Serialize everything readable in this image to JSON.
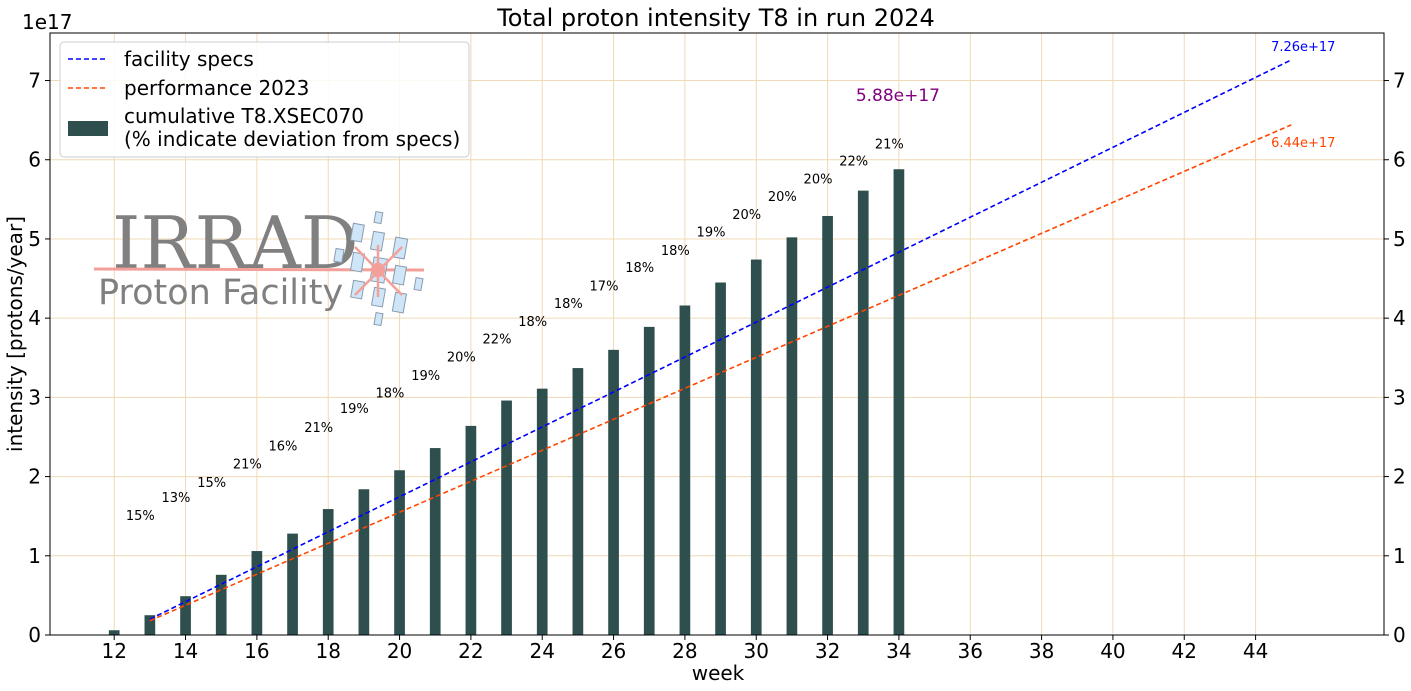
{
  "chart_data": {
    "type": "bar",
    "title": "Total proton intensity T8 in run 2024",
    "xlabel": "week",
    "ylabel": "intensity [protons/year]",
    "y_exponent_label": "1e17",
    "xlim": [
      10.2,
      47.6
    ],
    "ylim": [
      0,
      7.6
    ],
    "x_ticks": [
      "12",
      "14",
      "16",
      "18",
      "20",
      "22",
      "24",
      "26",
      "28",
      "30",
      "32",
      "34",
      "36",
      "38",
      "40",
      "42",
      "44"
    ],
    "y_ticks": [
      "0",
      "1",
      "2",
      "3",
      "4",
      "5",
      "6",
      "7"
    ],
    "grid": true,
    "legend_position": "top-left",
    "bars": {
      "name": "cumulative T8.XSEC070\n(% indicate deviation from specs)",
      "color": "#2f4f4f",
      "weeks": [
        12,
        13,
        14,
        15,
        16,
        17,
        18,
        19,
        20,
        21,
        22,
        23,
        24,
        25,
        26,
        27,
        28,
        29,
        30,
        31,
        32,
        33,
        34
      ],
      "values": [
        0.06,
        0.25,
        0.49,
        0.76,
        1.06,
        1.28,
        1.59,
        1.84,
        2.08,
        2.36,
        2.64,
        2.96,
        3.11,
        3.37,
        3.6,
        3.89,
        4.16,
        4.45,
        4.74,
        5.02,
        5.29,
        5.61,
        5.88
      ],
      "deviation_labels": [
        "15%",
        "13%",
        "15%",
        "21%",
        "16%",
        "21%",
        "19%",
        "18%",
        "19%",
        "20%",
        "22%",
        "18%",
        "18%",
        "17%",
        "18%",
        "18%",
        "19%",
        "20%",
        "20%",
        "20%",
        "22%",
        "21%"
      ],
      "deviation_label_weeks": [
        12.9,
        13.9,
        14.9,
        15.9,
        16.9,
        17.9,
        18.9,
        19.9,
        20.9,
        21.9,
        22.9,
        23.9,
        24.9,
        25.9,
        26.9,
        27.9,
        28.9,
        29.9,
        30.9,
        31.9,
        32.9,
        33.9
      ],
      "deviation_label_heights": [
        1.45,
        1.68,
        1.87,
        2.1,
        2.33,
        2.56,
        2.8,
        3.0,
        3.22,
        3.45,
        3.68,
        3.9,
        4.13,
        4.35,
        4.58,
        4.8,
        5.03,
        5.25,
        5.48,
        5.7,
        5.93,
        6.14
      ]
    },
    "series": [
      {
        "name": "facility specs",
        "color": "#0000ff",
        "style": "dashed",
        "x": [
          13,
          45
        ],
        "y": [
          0.2,
          7.26
        ]
      },
      {
        "name": "performance 2023",
        "color": "#ff4500",
        "style": "dashed",
        "x": [
          13,
          45
        ],
        "y": [
          0.18,
          6.44
        ]
      }
    ],
    "annotations": [
      {
        "text": "7.26e+17",
        "color": "#0000ff",
        "x": 45,
        "y": 7.26
      },
      {
        "text": "6.44e+17",
        "color": "#ff4500",
        "x": 45,
        "y": 6.44
      },
      {
        "text": "5.88e+17",
        "color": "#800080",
        "x": 34,
        "y": 5.88
      }
    ],
    "grid_color": "#f0d9b5"
  },
  "logo": {
    "text_main": "IRRAD",
    "text_sub": "Proton Facility",
    "text_color": "#808080",
    "accent_color": "#f4a09a",
    "tile_color": "#cfe6f8"
  }
}
